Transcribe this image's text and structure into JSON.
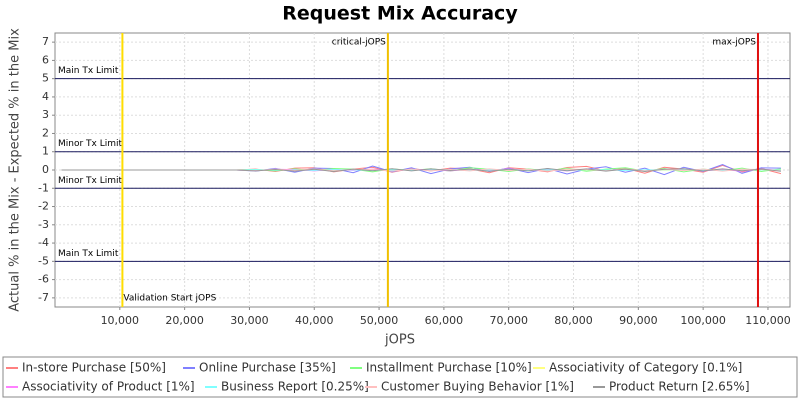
{
  "chart_data": {
    "type": "line",
    "title": "Request Mix Accuracy",
    "x_label": "jOPS",
    "y_label": "Actual % in the Mix - Expected % in the Mix",
    "xlim": [
      0,
      113400
    ],
    "ylim": [
      -7.5,
      7.5
    ],
    "xticks": [
      {
        "value": 10000,
        "label": "10,000"
      },
      {
        "value": 20000,
        "label": "20,000"
      },
      {
        "value": 30000,
        "label": "30,000"
      },
      {
        "value": 40000,
        "label": "40,000"
      },
      {
        "value": 50000,
        "label": "50,000"
      },
      {
        "value": 60000,
        "label": "60,000"
      },
      {
        "value": 70000,
        "label": "70,000"
      },
      {
        "value": 80000,
        "label": "80,000"
      },
      {
        "value": 90000,
        "label": "90,000"
      },
      {
        "value": 100000,
        "label": "100,000"
      },
      {
        "value": 110000,
        "label": "110,000"
      }
    ],
    "yticks": [
      -7,
      -6,
      -5,
      -4,
      -3,
      -2,
      -1,
      0,
      1,
      2,
      3,
      4,
      5,
      6,
      7
    ],
    "grid": true,
    "legend": "bottom",
    "hlines": [
      {
        "value": 5,
        "label": "Main Tx Limit",
        "color": "#1a1a5e"
      },
      {
        "value": 1,
        "label": "Minor Tx Limit",
        "color": "#1a1a5e"
      },
      {
        "value": -1,
        "label": "Minor Tx Limit",
        "color": "#1a1a5e"
      },
      {
        "value": -5,
        "label": "Main Tx Limit",
        "color": "#1a1a5e"
      }
    ],
    "vlines": [
      {
        "value": 10400,
        "label": "Validation Start jOPS",
        "color": "#ffdd00"
      },
      {
        "value": 51360,
        "label": "critical-jOPS",
        "color": "#f0c000"
      },
      {
        "value": 108460,
        "label": "max-jOPS",
        "color": "#e01010"
      }
    ],
    "x": [
      1000,
      10000,
      20000,
      25000,
      28000,
      31000,
      34000,
      37000,
      40000,
      43000,
      46000,
      49000,
      52000,
      55000,
      58000,
      61000,
      64000,
      67000,
      70000,
      73000,
      76000,
      79000,
      82000,
      85000,
      88000,
      91000,
      94000,
      97000,
      100000,
      103000,
      106000,
      109000,
      112000
    ],
    "series": [
      {
        "name": "In-store Purchase [50%]",
        "color": "#ff8080",
        "values": [
          0,
          0,
          0,
          0,
          0,
          0.05,
          -0.08,
          0.1,
          0.12,
          -0.1,
          0.05,
          0.15,
          -0.12,
          0.08,
          -0.05,
          0.1,
          0.06,
          -0.15,
          0.12,
          0.05,
          -0.1,
          0.14,
          0.2,
          -0.05,
          0.1,
          -0.18,
          0.15,
          0.05,
          -0.12,
          0.25,
          -0.1,
          0.08,
          -0.2
        ]
      },
      {
        "name": "Online Purchase [35%]",
        "color": "#8080ff",
        "values": [
          0,
          0,
          0,
          0,
          0,
          -0.06,
          0.09,
          -0.12,
          0.1,
          0.08,
          -0.15,
          0.22,
          -0.1,
          0.12,
          -0.2,
          0.06,
          0.15,
          -0.08,
          0.1,
          -0.14,
          0.08,
          -0.22,
          0.05,
          0.18,
          -0.12,
          0.1,
          -0.25,
          0.15,
          -0.08,
          0.3,
          -0.18,
          0.12,
          0.1
        ]
      },
      {
        "name": "Installment Purchase [10%]",
        "color": "#80ff80",
        "values": [
          0,
          0,
          0,
          0,
          0,
          0.03,
          -0.05,
          0.06,
          -0.04,
          0.08,
          0.05,
          -0.1,
          0.06,
          -0.03,
          0.07,
          -0.06,
          0.12,
          0.04,
          -0.08,
          0.06,
          -0.05,
          0.1,
          -0.07,
          0.05,
          0.12,
          -0.06,
          0.08,
          -0.1,
          0.05,
          -0.04,
          0.1,
          -0.08,
          0.06
        ]
      },
      {
        "name": "Associativity of Category [0.1%]",
        "color": "#ffff80",
        "values": [
          0,
          0,
          0,
          0,
          0,
          0.01,
          0,
          -0.01,
          0.01,
          0,
          0.01,
          -0.01,
          0,
          0.01,
          0,
          -0.01,
          0.01,
          0,
          0.01,
          -0.01,
          0,
          0.01,
          0,
          -0.01,
          0.01,
          0,
          -0.01,
          0.01,
          0,
          0.01,
          -0.01,
          0,
          0.01
        ]
      },
      {
        "name": "Associativity of Product [1%]",
        "color": "#ff80ff",
        "values": [
          0,
          0,
          0,
          0,
          0,
          -0.03,
          0.04,
          0.02,
          -0.05,
          0.03,
          -0.02,
          0.05,
          -0.04,
          0.02,
          0.03,
          -0.05,
          0.04,
          -0.02,
          0.06,
          -0.03,
          0.02,
          -0.05,
          0.04,
          -0.03,
          0.05,
          -0.04,
          0.03,
          0.06,
          -0.05,
          0.02,
          -0.06,
          0.04,
          -0.02
        ]
      },
      {
        "name": "Business Report [0.25%]",
        "color": "#80ffff",
        "values": [
          0,
          0,
          0,
          0,
          0,
          0.02,
          -0.01,
          0.01,
          -0.02,
          0.02,
          0.01,
          -0.02,
          0.01,
          0,
          -0.01,
          0.02,
          -0.02,
          0.01,
          0.02,
          -0.01,
          0.01,
          -0.02,
          0.02,
          0.01,
          -0.02,
          0.01,
          0.02,
          -0.01,
          0.01,
          -0.02,
          0.02,
          0.01,
          -0.01
        ]
      },
      {
        "name": "Customer Buying Behavior [1%]",
        "color": "#ffc0c0",
        "values": [
          0,
          0,
          0,
          0,
          0,
          -0.04,
          0.05,
          -0.03,
          0.06,
          -0.05,
          0.04,
          0.03,
          -0.06,
          0.05,
          -0.04,
          0.03,
          -0.05,
          0.06,
          -0.03,
          0.04,
          -0.06,
          0.05,
          0.03,
          -0.04,
          0.06,
          -0.05,
          0.04,
          -0.03,
          0.05,
          -0.06,
          0.04,
          0.03,
          -0.05
        ]
      },
      {
        "name": "Product Return [2.65%]",
        "color": "#999999",
        "values": [
          0,
          0,
          0,
          0,
          0,
          -0.05,
          0.03,
          -0.06,
          0.04,
          -0.08,
          0.05,
          -0.04,
          0.07,
          -0.05,
          0.06,
          -0.03,
          0.05,
          -0.07,
          0.04,
          -0.05,
          0.08,
          -0.04,
          0.06,
          -0.06,
          0.05,
          -0.08,
          0.04,
          0.07,
          -0.05,
          0.06,
          -0.04,
          0.05,
          -0.07
        ]
      }
    ]
  }
}
